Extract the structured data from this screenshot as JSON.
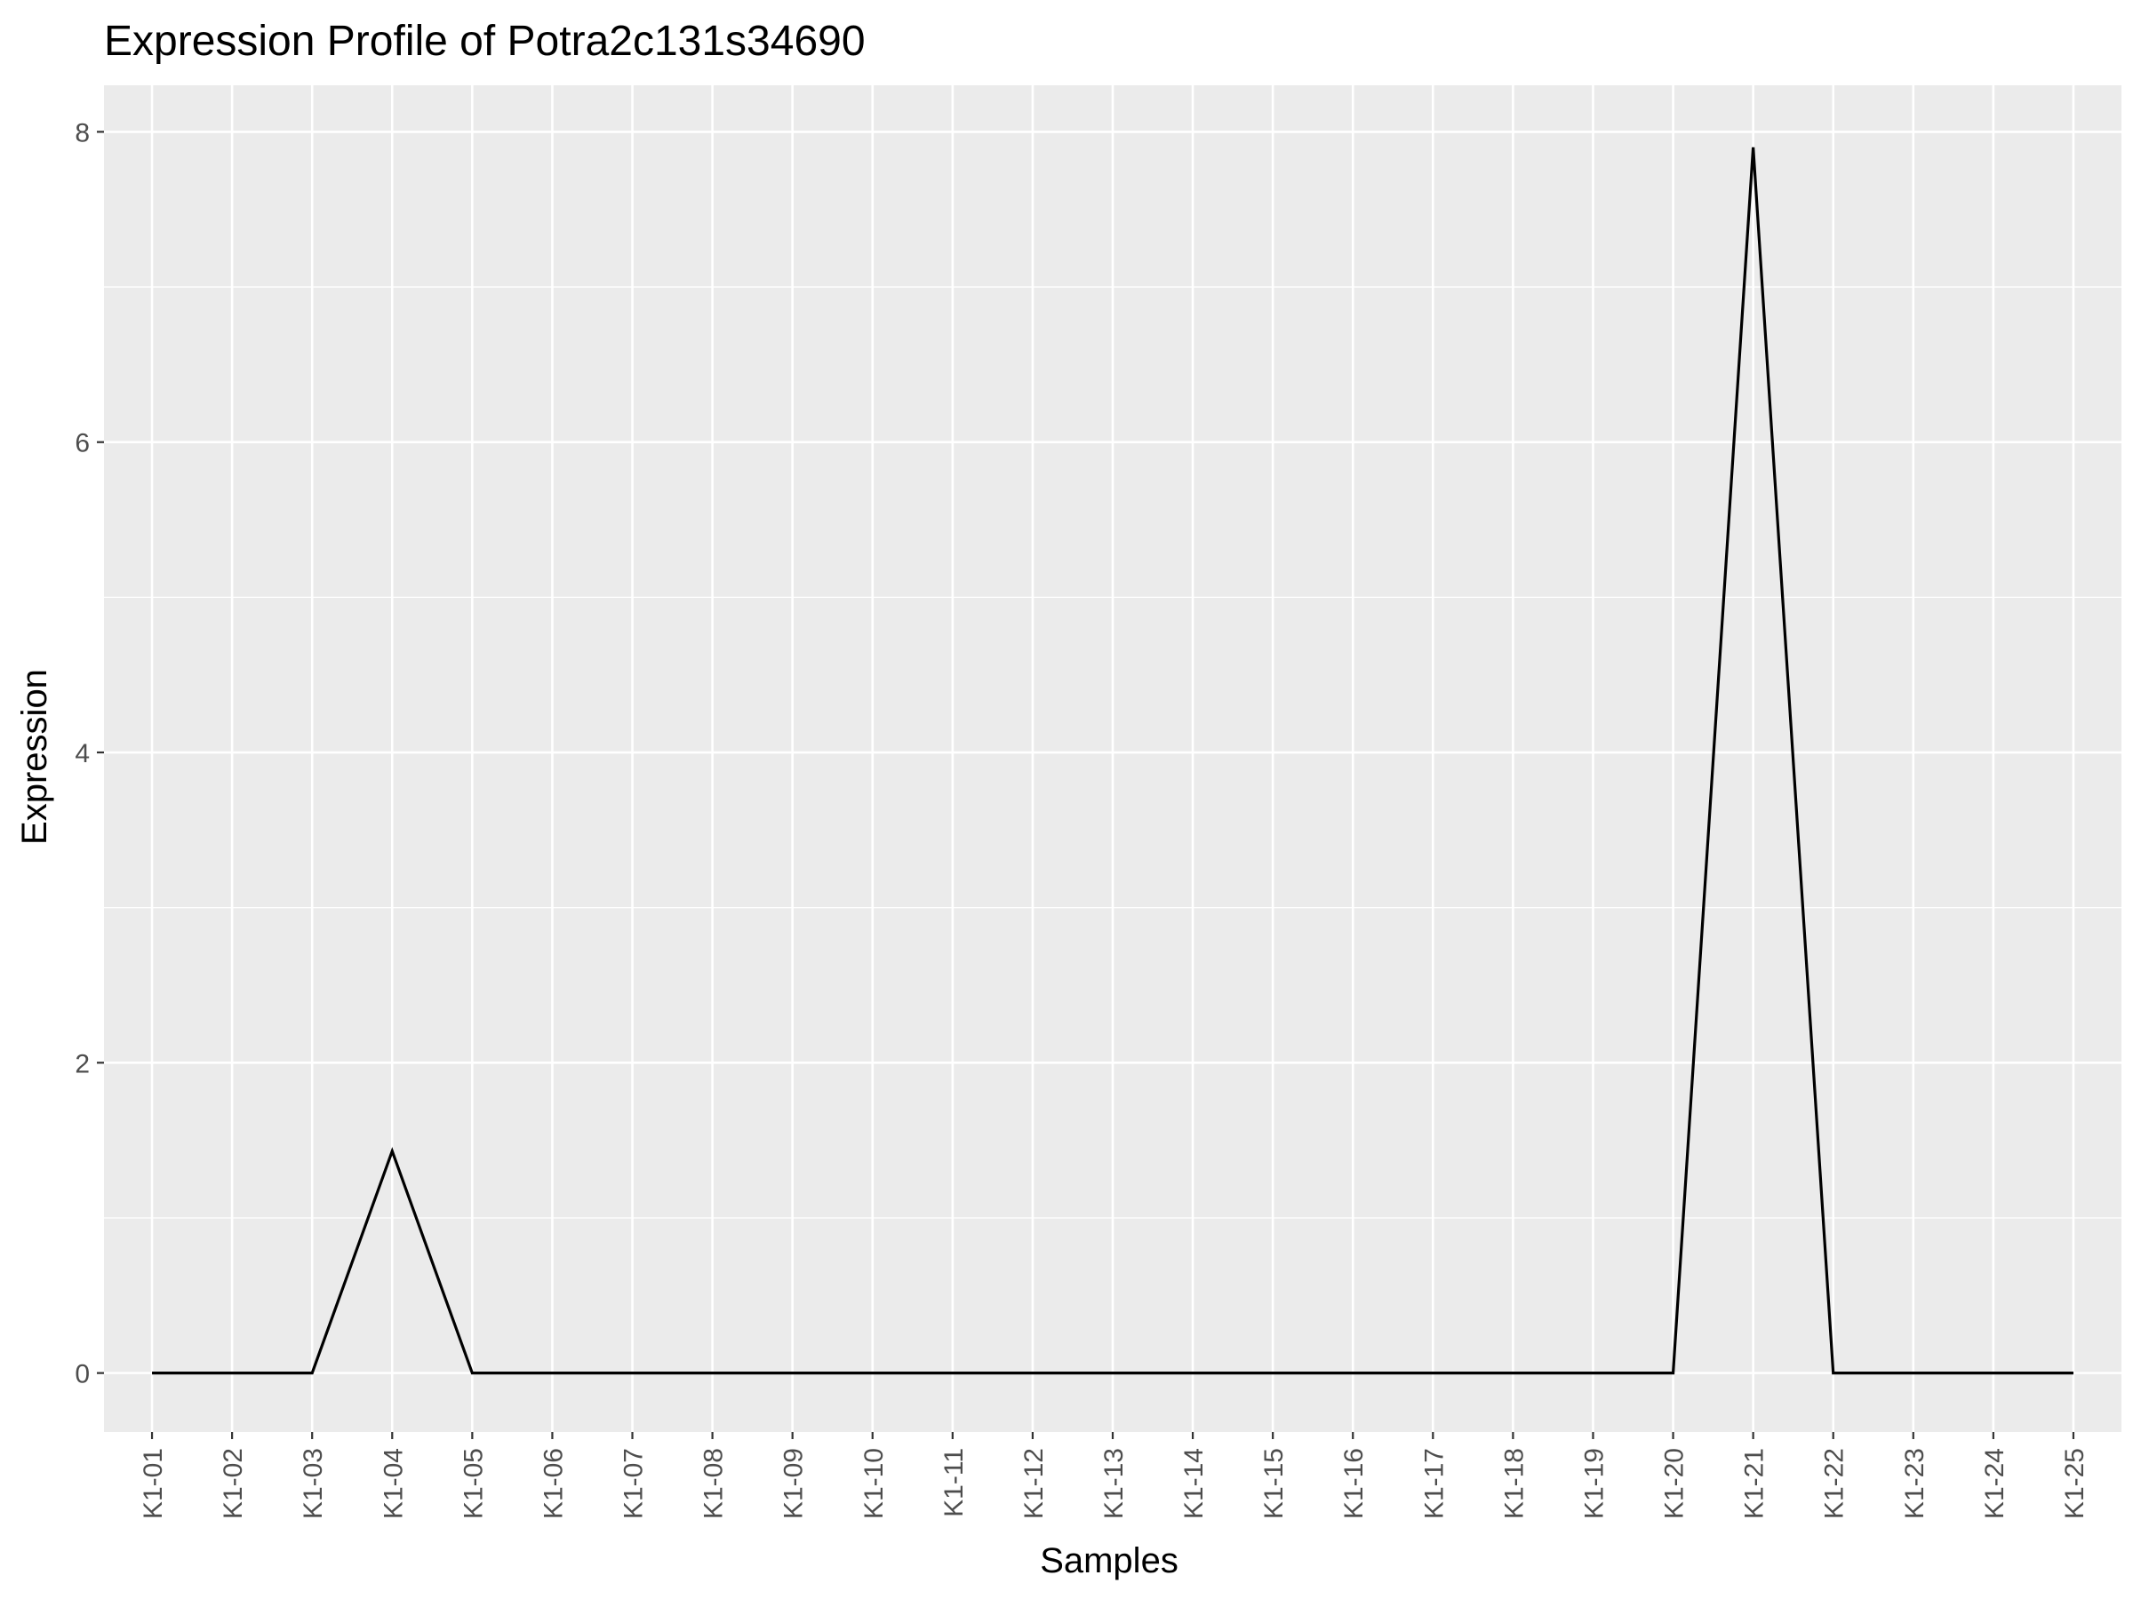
{
  "chart_data": {
    "type": "line",
    "title": "Expression Profile of Potra2c131s34690",
    "xlabel": "Samples",
    "ylabel": "Expression",
    "categories": [
      "K1-01",
      "K1-02",
      "K1-03",
      "K1-04",
      "K1-05",
      "K1-06",
      "K1-07",
      "K1-08",
      "K1-09",
      "K1-10",
      "K1-11",
      "K1-12",
      "K1-13",
      "K1-14",
      "K1-15",
      "K1-16",
      "K1-17",
      "K1-18",
      "K1-19",
      "K1-20",
      "K1-21",
      "K1-22",
      "K1-23",
      "K1-24",
      "K1-25"
    ],
    "series": [
      {
        "values": [
          0,
          0,
          0,
          1.43,
          0,
          0,
          0,
          0,
          0,
          0,
          0,
          0,
          0,
          0,
          0,
          0,
          0,
          0,
          0,
          0,
          7.9,
          0,
          0,
          0,
          0
        ]
      }
    ],
    "ylim": [
      -0.38,
      8.3
    ],
    "yticks": [
      0,
      2,
      4,
      6,
      8
    ],
    "grid": true,
    "colors": {
      "panel": "#ebebeb",
      "grid": "#ffffff",
      "line": "#000000",
      "tick_text": "#4d4d4d",
      "tick_mark": "#333333"
    }
  }
}
